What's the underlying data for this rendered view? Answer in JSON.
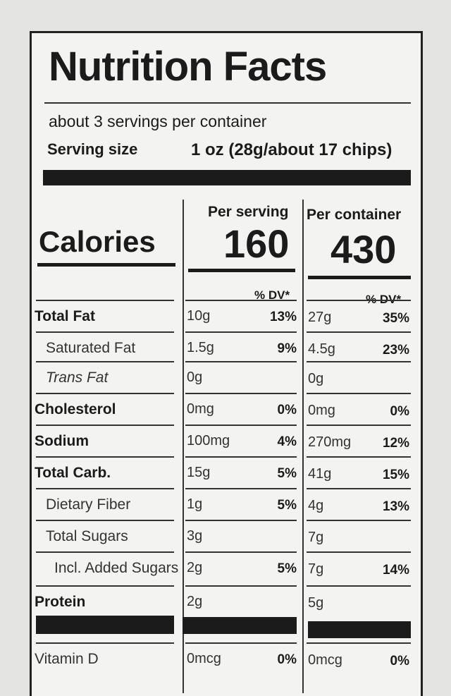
{
  "header": {
    "title": "Nutrition Facts",
    "servings": "about 3 servings per container",
    "serving_size_label": "Serving size",
    "serving_size_value": "1 oz (28g/about 17 chips)"
  },
  "columns": {
    "per_serving": "Per serving",
    "per_container": "Per container"
  },
  "calories": {
    "label": "Calories",
    "per_serving": "160",
    "per_container": "430"
  },
  "dv_header": {
    "per_serving": "% DV*",
    "per_container": "% DV*"
  },
  "rows": [
    {
      "name": "Total Fat",
      "serving": "10g",
      "serving_dv": "13%",
      "container": "27g",
      "container_dv": "35%"
    },
    {
      "name": "Saturated Fat",
      "serving": "1.5g",
      "serving_dv": "9%",
      "container": "4.5g",
      "container_dv": "23%"
    },
    {
      "name": "Trans Fat",
      "serving": "0g",
      "container": "0g"
    },
    {
      "name": "Cholesterol",
      "serving": "0mg",
      "serving_dv": "0%",
      "container": "0mg",
      "container_dv": "0%"
    },
    {
      "name": "Sodium",
      "serving": "100mg",
      "serving_dv": "4%",
      "container": "270mg",
      "container_dv": "12%"
    },
    {
      "name": "Total Carb.",
      "serving": "15g",
      "serving_dv": "5%",
      "container": "41g",
      "container_dv": "15%"
    },
    {
      "name": "Dietary Fiber",
      "serving": "1g",
      "serving_dv": "5%",
      "container": "4g",
      "container_dv": "13%"
    },
    {
      "name": "Total Sugars",
      "serving": "3g",
      "container": "7g"
    },
    {
      "name": "Incl. Added Sugars",
      "serving": "2g",
      "serving_dv": "5%",
      "container": "7g",
      "container_dv": "14%"
    },
    {
      "name": "Protein",
      "serving": "2g",
      "container": "5g"
    },
    {
      "name": "Vitamin D",
      "serving": "0mcg",
      "serving_dv": "0%",
      "container": "0mcg",
      "container_dv": "0%"
    }
  ]
}
